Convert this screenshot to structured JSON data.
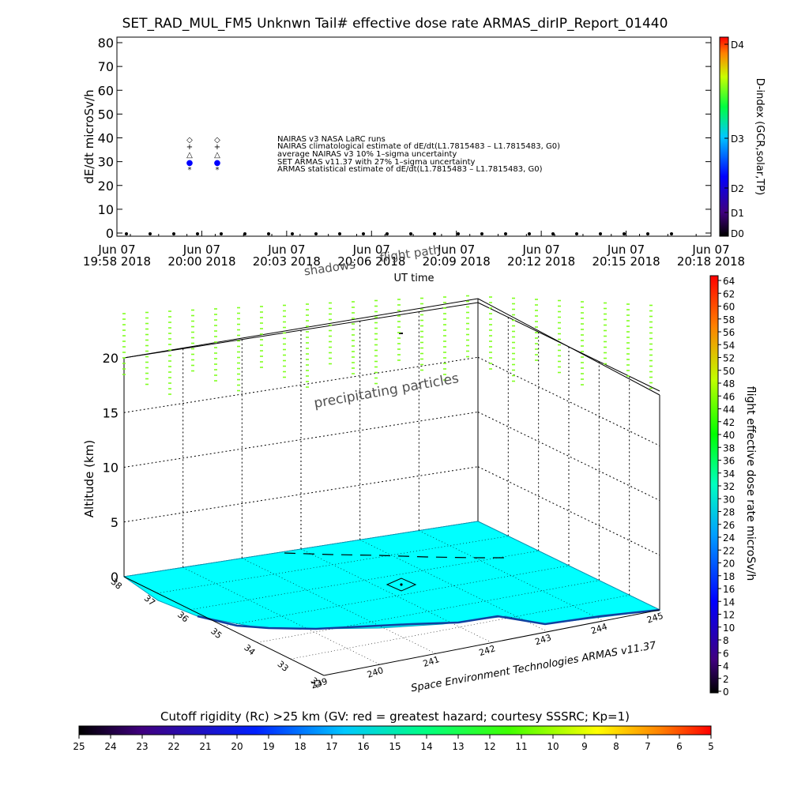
{
  "title": "SET_RAD_MUL_FM5 Unknwn Tail#  effective dose rate ARMAS_dirIP_Report_01440",
  "chart_data": [
    {
      "type": "scatter",
      "title": "SET_RAD_MUL_FM5 Unknwn Tail#  effective dose rate ARMAS_dirIP_Report_01440",
      "xlabel": "UT time",
      "ylabel": "dE/dt microSv/h",
      "ylim": [
        0,
        80
      ],
      "yticks": [
        "0",
        "10",
        "20",
        "30",
        "40",
        "50",
        "60",
        "70",
        "80"
      ],
      "xtick_labels": [
        [
          "Jun 07",
          "19:58 2018"
        ],
        [
          "Jun 07",
          "20:00 2018"
        ],
        [
          "Jun 07",
          "20:03 2018"
        ],
        [
          "Jun 07",
          "20:06 2018"
        ],
        [
          "Jun 07",
          "20:09 2018"
        ],
        [
          "Jun 07",
          "20:12 2018"
        ],
        [
          "Jun 07",
          "20:15 2018"
        ],
        [
          "Jun 07",
          "20:18 2018"
        ]
      ],
      "legend": [
        {
          "symbol": "◇",
          "label": "NAIRAS v3 NASA LaRC runs"
        },
        {
          "symbol": "+",
          "label": "NAIRAS climatological estimate of dE/dt(L1.7815483 – L1.7815483, G0)"
        },
        {
          "symbol": "△",
          "label": "average NAIRAS v3 10% 1–sigma uncertainty"
        },
        {
          "symbol": "●",
          "label": "SET ARMAS v11.37 with 27% 1–sigma uncertainty"
        },
        {
          "symbol": "*",
          "label": "ARMAS statistical estimate of dE/dt(L1.7815483 – L1.7815483, G0)"
        }
      ],
      "series_note": "measured dose rate points near 0 across the time span",
      "right_axis": {
        "label": "D-index (GCR,solar,TP)",
        "ticks": [
          "D0",
          "D1",
          "D2",
          "D3",
          "D4"
        ]
      }
    },
    {
      "type": "scatter",
      "subtype": "3d-flight-track",
      "zlabel": "Altitude (km)",
      "zticks": [
        "0",
        "5",
        "10",
        "15",
        "20"
      ],
      "longitude_ticks": [
        "239",
        "240",
        "241",
        "242",
        "243",
        "244",
        "245"
      ],
      "latitude_ticks": [
        "32",
        "33",
        "34",
        "35",
        "36",
        "37",
        "38"
      ],
      "annotations": [
        "precipitating particles",
        "shadows",
        "flight path"
      ],
      "credit": "Space Environment Technologies ARMAS v11.37",
      "colorbar": {
        "label": "flight effective dose rate microSv/h",
        "ticks": [
          "0",
          "2",
          "4",
          "6",
          "8",
          "10",
          "12",
          "14",
          "16",
          "18",
          "20",
          "22",
          "24",
          "26",
          "28",
          "30",
          "32",
          "34",
          "36",
          "38",
          "40",
          "42",
          "44",
          "46",
          "48",
          "50",
          "52",
          "54",
          "56",
          "58",
          "60",
          "62",
          "64"
        ]
      }
    },
    {
      "type": "heatmap",
      "subtype": "colorbar",
      "title": "Cutoff rigidity (Rc) >25 km (GV: red = greatest hazard; courtesy SSSRC; Kp=1)",
      "ticks": [
        "25",
        "24",
        "23",
        "22",
        "21",
        "20",
        "19",
        "18",
        "17",
        "16",
        "15",
        "14",
        "13",
        "12",
        "11",
        "10",
        "9",
        "8",
        "7",
        "6",
        "5"
      ]
    }
  ],
  "colors": {
    "ground": "#00ffff",
    "particles": "#80ff20",
    "marker_blue": "#0000ff"
  }
}
